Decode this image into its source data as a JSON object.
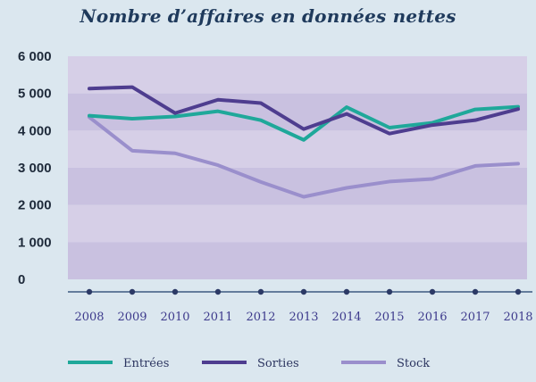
{
  "chart_data": {
    "type": "line",
    "title": "Nombre d’affaires en données nettes",
    "categories": [
      "2008",
      "2009",
      "2010",
      "2011",
      "2012",
      "2013",
      "2014",
      "2015",
      "2016",
      "2017",
      "2018"
    ],
    "series": [
      {
        "name": "Entrées",
        "color": "#1fa89a",
        "values": [
          4400,
          4320,
          4380,
          4520,
          4280,
          3750,
          4630,
          4080,
          4210,
          4570,
          4640
        ]
      },
      {
        "name": "Sorties",
        "color": "#4e3d8f",
        "values": [
          5130,
          5170,
          4470,
          4830,
          4740,
          4040,
          4450,
          3920,
          4150,
          4280,
          4580
        ]
      },
      {
        "name": "Stock",
        "color": "#9a8fcc",
        "values": [
          4360,
          3460,
          3390,
          3070,
          2620,
          2220,
          2460,
          2630,
          2700,
          3050,
          3110
        ]
      }
    ],
    "yticks": [
      "6 000",
      "5 000",
      "4 000",
      "3 000",
      "2 000",
      "1 000",
      "0"
    ],
    "ylim": [
      0,
      6000
    ],
    "xlabel": "",
    "ylabel": "",
    "legend_position": "bottom"
  }
}
